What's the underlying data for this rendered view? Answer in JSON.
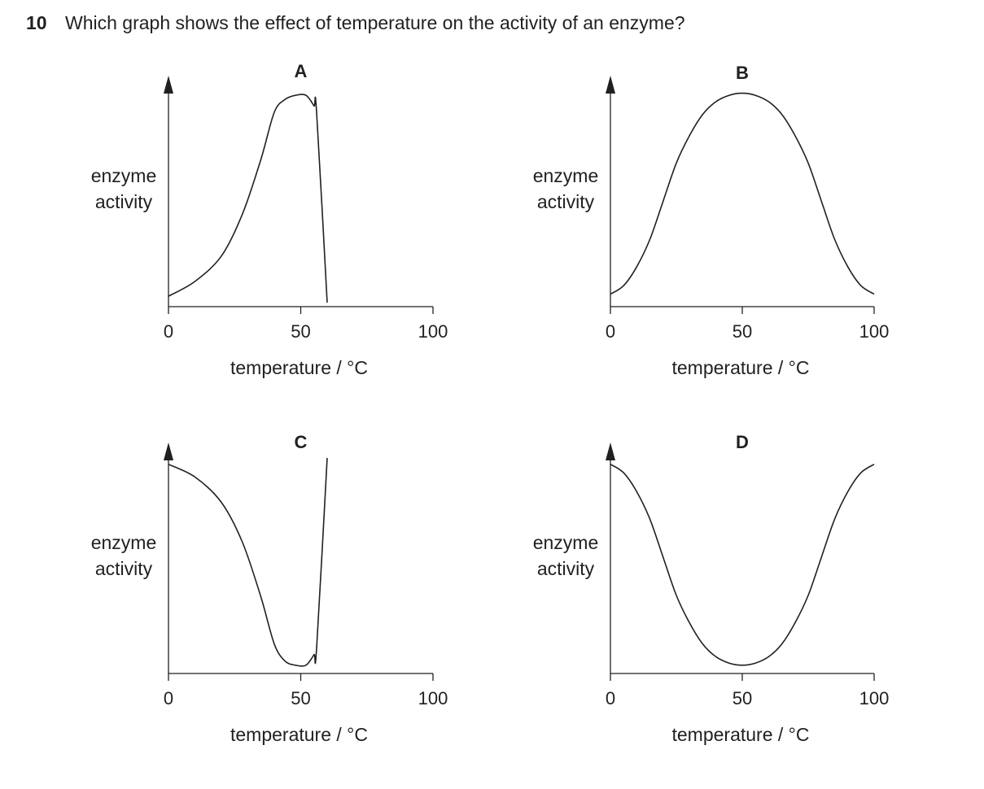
{
  "question": {
    "number": "10",
    "text": "Which graph shows the effect of temperature on the activity of an enzyme?"
  },
  "chart_data": [
    {
      "type": "line",
      "panel_label": "A",
      "xlabel": "temperature / °C",
      "ylabel": [
        "enzyme",
        "activity"
      ],
      "xticks": [
        "0",
        "50",
        "100"
      ],
      "xlim": [
        0,
        100
      ],
      "ylim": [
        0,
        100
      ],
      "series": [
        {
          "x": [
            0,
            10,
            20,
            28,
            35,
            40,
            44,
            48,
            52,
            55,
            56,
            60
          ],
          "y": [
            3,
            10,
            22,
            42,
            68,
            90,
            96,
            98,
            98,
            93,
            90,
            0
          ]
        }
      ]
    },
    {
      "type": "line",
      "panel_label": "B",
      "xlabel": "temperature / °C",
      "ylabel": [
        "enzyme",
        "activity"
      ],
      "xticks": [
        "0",
        "50",
        "100"
      ],
      "xlim": [
        0,
        100
      ],
      "ylim": [
        0,
        100
      ],
      "series": [
        {
          "x": [
            0,
            5,
            10,
            15,
            20,
            25,
            30,
            35,
            40,
            45,
            50,
            55,
            60,
            65,
            70,
            75,
            80,
            85,
            90,
            95,
            100
          ],
          "y": [
            4,
            8,
            17,
            30,
            48,
            66,
            79,
            89,
            95,
            98,
            99,
            98,
            95,
            89,
            79,
            66,
            48,
            30,
            17,
            8,
            4
          ]
        }
      ]
    },
    {
      "type": "line",
      "panel_label": "C",
      "xlabel": "temperature / °C",
      "ylabel": [
        "enzyme",
        "activity"
      ],
      "xticks": [
        "0",
        "50",
        "100"
      ],
      "xlim": [
        0,
        100
      ],
      "ylim": [
        0,
        100
      ],
      "series": [
        {
          "x": [
            0,
            10,
            20,
            28,
            35,
            40,
            44,
            48,
            52,
            55,
            56,
            60
          ],
          "y": [
            97,
            91,
            79,
            60,
            34,
            12,
            4,
            2,
            2,
            7,
            10,
            100
          ]
        }
      ]
    },
    {
      "type": "line",
      "panel_label": "D",
      "xlabel": "temperature / °C",
      "ylabel": [
        "enzyme",
        "activity"
      ],
      "xticks": [
        "0",
        "50",
        "100"
      ],
      "xlim": [
        0,
        100
      ],
      "ylim": [
        0,
        100
      ],
      "series": [
        {
          "x": [
            0,
            5,
            10,
            15,
            20,
            25,
            30,
            35,
            40,
            45,
            50,
            55,
            60,
            65,
            70,
            75,
            80,
            85,
            90,
            95,
            100
          ],
          "y": [
            97,
            93,
            84,
            71,
            53,
            35,
            22,
            12,
            6,
            3,
            2,
            3,
            6,
            12,
            22,
            35,
            53,
            71,
            84,
            93,
            97
          ]
        }
      ]
    }
  ]
}
